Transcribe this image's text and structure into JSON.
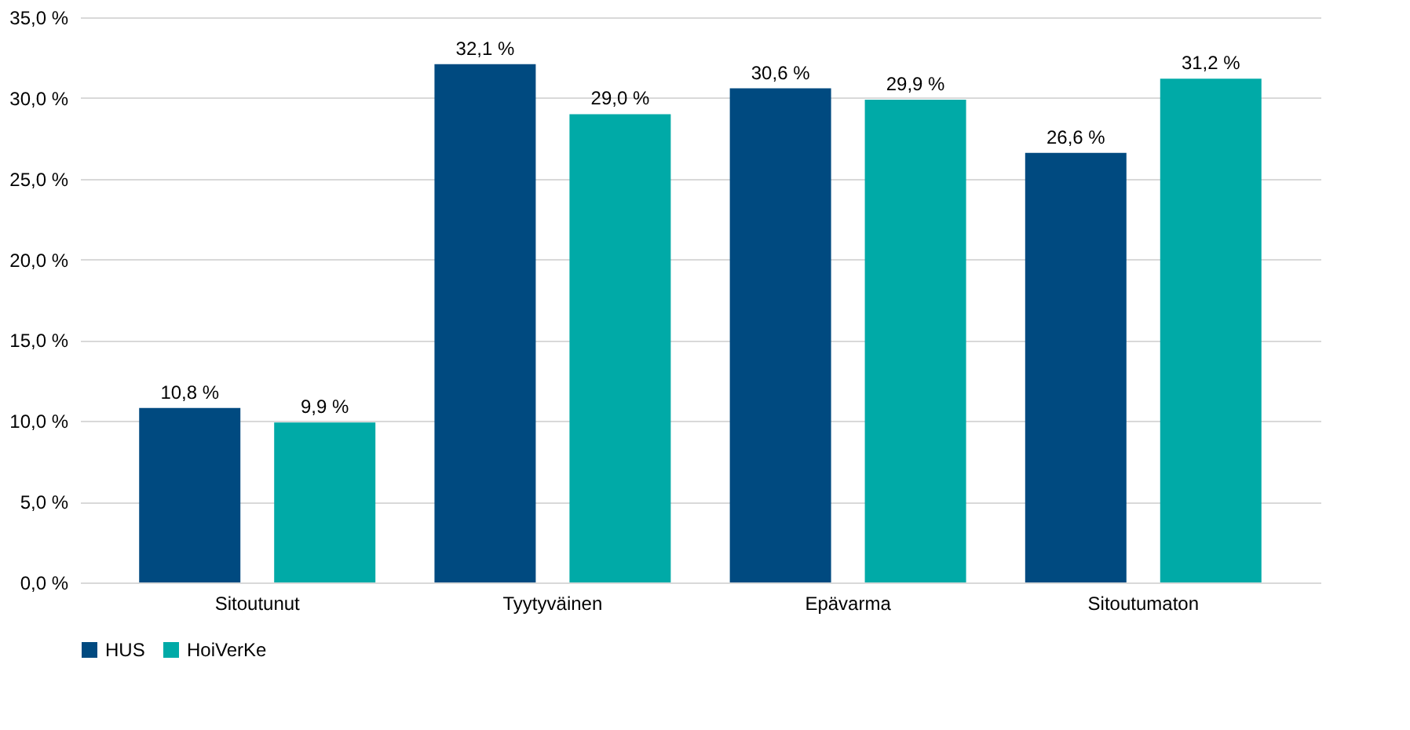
{
  "chart_data": {
    "type": "bar",
    "categories": [
      "Sitoutunut",
      "Tyytyväinen",
      "Epävarma",
      "Sitoutumaton"
    ],
    "series": [
      {
        "name": "HUS",
        "color": "#004a80",
        "values": [
          10.8,
          32.1,
          30.6,
          26.6
        ],
        "value_labels": [
          "10,8 %",
          "32,1 %",
          "30,6 %",
          "26,6 %"
        ]
      },
      {
        "name": "HoiVerKe",
        "color": "#00aaa7",
        "values": [
          9.9,
          29.0,
          29.9,
          31.2
        ],
        "value_labels": [
          "9,9 %",
          "29,0 %",
          "29,9 %",
          "31,2 %"
        ]
      }
    ],
    "ylim": [
      0,
      35
    ],
    "yticks": [
      {
        "value": 0,
        "label": "0,0 %"
      },
      {
        "value": 5,
        "label": "5,0 %"
      },
      {
        "value": 10,
        "label": "10,0 %"
      },
      {
        "value": 15,
        "label": "15,0 %"
      },
      {
        "value": 20,
        "label": "20,0 %"
      },
      {
        "value": 25,
        "label": "25,0 %"
      },
      {
        "value": 30,
        "label": "30,0 %"
      },
      {
        "value": 35,
        "label": "35,0 %"
      }
    ],
    "grid": "y",
    "legend": "bottom"
  }
}
